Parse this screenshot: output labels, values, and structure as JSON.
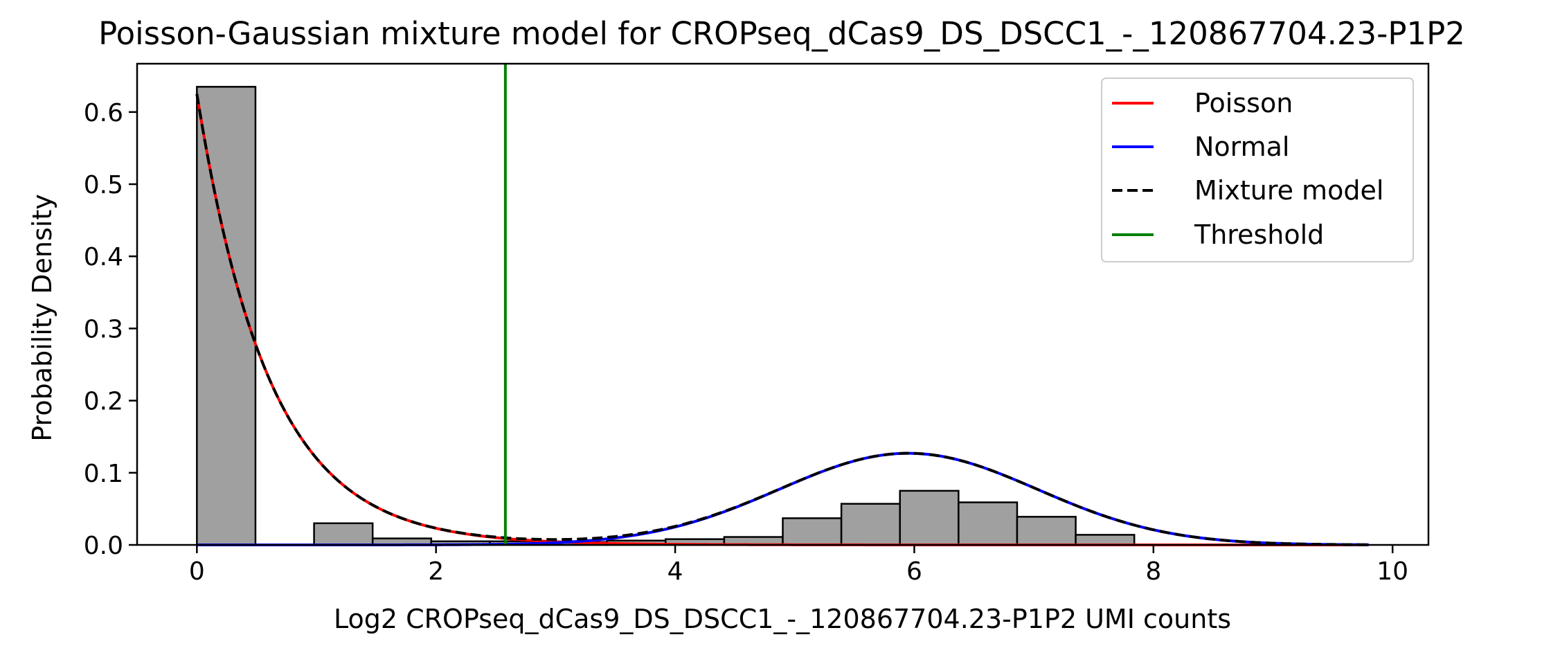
{
  "chart_data": {
    "type": "histogram+line",
    "title": "Poisson-Gaussian mixture model for CROPseq_dCas9_DS_DSCC1_-_120867704.23-P1P2",
    "xlabel": "Log2 CROPseq_dCas9_DS_DSCC1_-_120867704.23-P1P2 UMI counts",
    "ylabel": "Probability Density",
    "xlim": [
      -0.5,
      10.3
    ],
    "ylim": [
      0,
      0.667
    ],
    "xticks": [
      0,
      2,
      4,
      6,
      8,
      10
    ],
    "xtick_labels": [
      "0",
      "2",
      "4",
      "6",
      "8",
      "10"
    ],
    "yticks": [
      0,
      0.1,
      0.2,
      0.3,
      0.4,
      0.5,
      0.6
    ],
    "ytick_labels": [
      "0.0",
      "0.1",
      "0.2",
      "0.3",
      "0.4",
      "0.5",
      "0.6"
    ],
    "histogram": {
      "color": "#a0a0a0",
      "edgecolor": "#000000",
      "bins": [
        {
          "x0": 0.0,
          "x1": 0.49,
          "value": 0.635
        },
        {
          "x0": 0.49,
          "x1": 0.98,
          "value": 0.0
        },
        {
          "x0": 0.98,
          "x1": 1.47,
          "value": 0.03
        },
        {
          "x0": 1.47,
          "x1": 1.96,
          "value": 0.009
        },
        {
          "x0": 1.96,
          "x1": 2.45,
          "value": 0.005
        },
        {
          "x0": 2.45,
          "x1": 2.94,
          "value": 0.005
        },
        {
          "x0": 2.94,
          "x1": 3.43,
          "value": 0.004
        },
        {
          "x0": 3.43,
          "x1": 3.92,
          "value": 0.006
        },
        {
          "x0": 3.92,
          "x1": 4.41,
          "value": 0.008
        },
        {
          "x0": 4.41,
          "x1": 4.9,
          "value": 0.011
        },
        {
          "x0": 4.9,
          "x1": 5.39,
          "value": 0.037
        },
        {
          "x0": 5.39,
          "x1": 5.88,
          "value": 0.057
        },
        {
          "x0": 5.88,
          "x1": 6.37,
          "value": 0.075
        },
        {
          "x0": 6.37,
          "x1": 6.86,
          "value": 0.059
        },
        {
          "x0": 6.86,
          "x1": 7.35,
          "value": 0.039
        },
        {
          "x0": 7.35,
          "x1": 7.84,
          "value": 0.014
        }
      ]
    },
    "curves": {
      "x_range": [
        0,
        9.8
      ],
      "poisson": {
        "amplitude": 0.625,
        "decay": 1.65
      },
      "normal": {
        "amplitude": 0.127,
        "mean": 5.95,
        "sd": 1.08
      }
    },
    "threshold": 2.58,
    "series": [
      {
        "name": "Poisson",
        "color": "#ff0000",
        "style": "solid"
      },
      {
        "name": "Normal",
        "color": "#0000ff",
        "style": "solid"
      },
      {
        "name": "Mixture model",
        "color": "#000000",
        "style": "dashed"
      },
      {
        "name": "Threshold",
        "color": "#008000",
        "style": "solid"
      }
    ],
    "legend_position": "top-right",
    "grid": false
  }
}
